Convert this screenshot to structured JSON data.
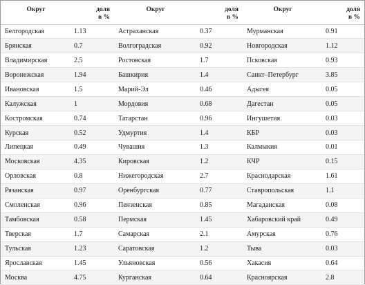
{
  "table": {
    "headers": [
      {
        "region": "Округ",
        "share": [
          "доля",
          "в %"
        ]
      },
      {
        "region": "Округ",
        "share": [
          "доля",
          "в %"
        ]
      },
      {
        "region": "Округ",
        "share": [
          "доля",
          "в %"
        ]
      }
    ],
    "rows": [
      [
        [
          "Белгородская",
          "1.13"
        ],
        [
          "Астраханская",
          "0.37"
        ],
        [
          "Мурманская",
          "0.91"
        ]
      ],
      [
        [
          "Брянская",
          "0.7"
        ],
        [
          "Волгоградская",
          "0.92"
        ],
        [
          "Новгородская",
          "1.12"
        ]
      ],
      [
        [
          "Владимирская",
          "2.5"
        ],
        [
          "Ростовская",
          "1.7"
        ],
        [
          "Псковская",
          "0.93"
        ]
      ],
      [
        [
          "Воронежская",
          "1.94"
        ],
        [
          "Башкирия",
          "1.4"
        ],
        [
          "Санкт–Петербург",
          "3.85"
        ]
      ],
      [
        [
          "Ивановская",
          "1.5"
        ],
        [
          "Марий-Эл",
          "0.46"
        ],
        [
          "Адыгея",
          "0.05"
        ]
      ],
      [
        [
          "Калужская",
          "1"
        ],
        [
          "Мордовия",
          "0.68"
        ],
        [
          "Дагестан",
          "0.05"
        ]
      ],
      [
        [
          "Костромская",
          "0.74"
        ],
        [
          "Татарстан",
          "0.96"
        ],
        [
          "Ингушетия",
          "0.03"
        ]
      ],
      [
        [
          "Курская",
          "0.52"
        ],
        [
          "Удмуртия",
          "1.4"
        ],
        [
          "КБР",
          "0.03"
        ]
      ],
      [
        [
          "Липецкая",
          "0.49"
        ],
        [
          "Чувашия",
          "1.3"
        ],
        [
          "Калмыкия",
          "0.01"
        ]
      ],
      [
        [
          "Московская",
          "4.35"
        ],
        [
          "Кировская",
          "1.2"
        ],
        [
          "КЧР",
          "0.15"
        ]
      ],
      [
        [
          "Орловская",
          "0.8"
        ],
        [
          "Нижегородская",
          "2.7"
        ],
        [
          "Краснодарская",
          "1.61"
        ]
      ],
      [
        [
          "Рязанская",
          "0.97"
        ],
        [
          "Оренбургская",
          "0.77"
        ],
        [
          "Ставропольская",
          "1.1"
        ]
      ],
      [
        [
          "Смоленская",
          "0.96"
        ],
        [
          "Пензенская",
          "0.85"
        ],
        [
          "Магаданская",
          "0.08"
        ]
      ],
      [
        [
          "Тамбовская",
          "0.58"
        ],
        [
          "Пермская",
          "1.45"
        ],
        [
          "Хабаровский край",
          "0.49"
        ]
      ],
      [
        [
          "Тверская",
          "1.7"
        ],
        [
          "Самарская",
          "2.1"
        ],
        [
          "Амурская",
          "0.76"
        ]
      ],
      [
        [
          "Тульская",
          "1.23"
        ],
        [
          "Саратовская",
          "1.2"
        ],
        [
          "Тыва",
          "0.03"
        ]
      ],
      [
        [
          "Ярославская",
          "1.45"
        ],
        [
          "Ульяновская",
          "0.56"
        ],
        [
          "Хакасия",
          "0.64"
        ]
      ],
      [
        [
          "Москва",
          "4.75"
        ],
        [
          "Курганская",
          "0.64"
        ],
        [
          "Красноярская",
          "2.8"
        ]
      ]
    ]
  }
}
